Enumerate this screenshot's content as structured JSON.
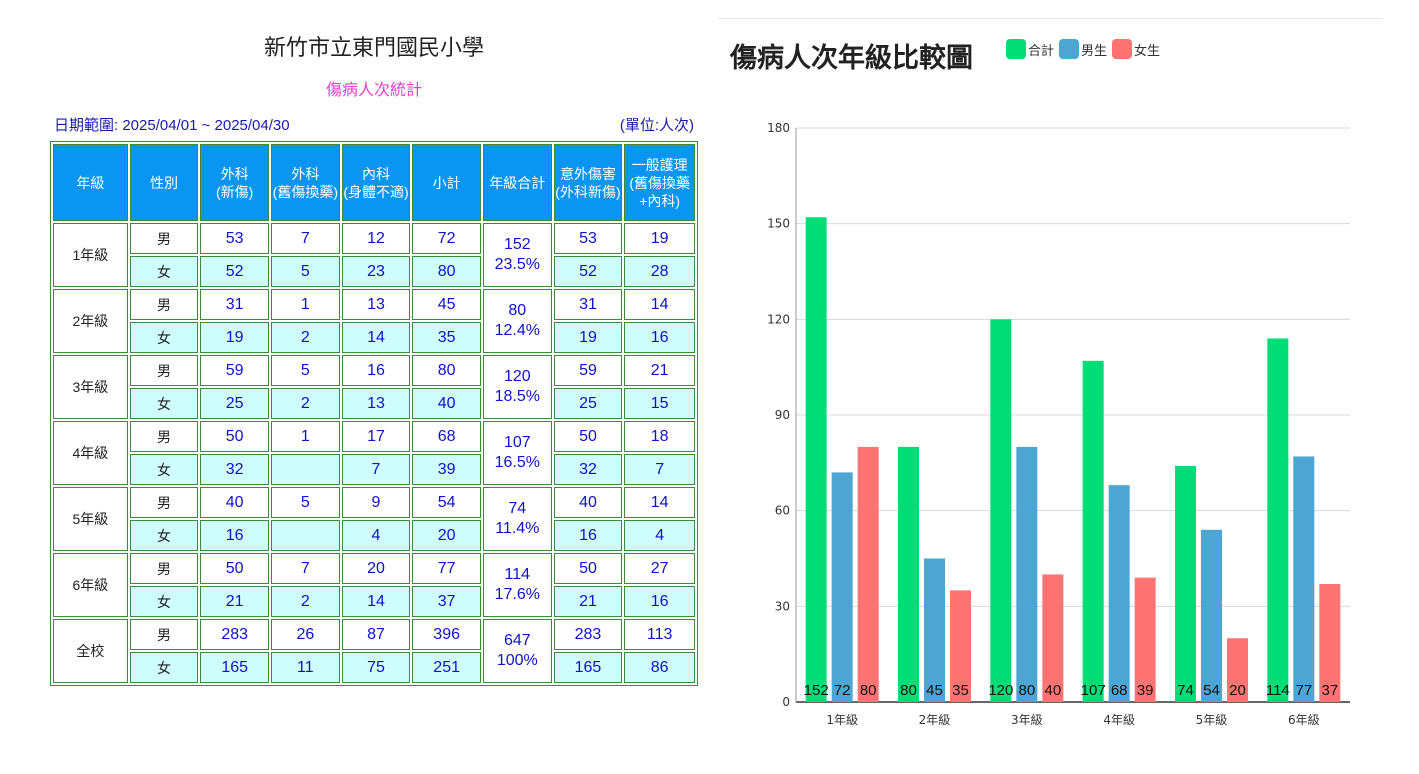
{
  "table": {
    "school": "新竹市立東門國民小學",
    "subtitle": "傷病人次統計",
    "date_range": "日期範圍: 2025/04/01 ~ 2025/04/30",
    "unit": "(單位:人次)",
    "headers": [
      "年級",
      "性別",
      "外科\n(新傷)",
      "外科\n(舊傷換藥)",
      "內科\n(身體不適)",
      "小計",
      "年級合計",
      "意外傷害\n(外科新傷)",
      "一般護理\n(舊傷換藥\n+內科)"
    ],
    "groups": [
      {
        "grade": "1年級",
        "total": "152",
        "pct": "23.5%",
        "rows": [
          {
            "sex": "男",
            "cells": [
              "53",
              "7",
              "12",
              "72",
              "53",
              "19"
            ]
          },
          {
            "sex": "女",
            "cells": [
              "52",
              "5",
              "23",
              "80",
              "52",
              "28"
            ]
          }
        ]
      },
      {
        "grade": "2年級",
        "total": "80",
        "pct": "12.4%",
        "rows": [
          {
            "sex": "男",
            "cells": [
              "31",
              "1",
              "13",
              "45",
              "31",
              "14"
            ]
          },
          {
            "sex": "女",
            "cells": [
              "19",
              "2",
              "14",
              "35",
              "19",
              "16"
            ]
          }
        ]
      },
      {
        "grade": "3年級",
        "total": "120",
        "pct": "18.5%",
        "rows": [
          {
            "sex": "男",
            "cells": [
              "59",
              "5",
              "16",
              "80",
              "59",
              "21"
            ]
          },
          {
            "sex": "女",
            "cells": [
              "25",
              "2",
              "13",
              "40",
              "25",
              "15"
            ]
          }
        ]
      },
      {
        "grade": "4年級",
        "total": "107",
        "pct": "16.5%",
        "rows": [
          {
            "sex": "男",
            "cells": [
              "50",
              "1",
              "17",
              "68",
              "50",
              "18"
            ]
          },
          {
            "sex": "女",
            "cells": [
              "32",
              "",
              "7",
              "39",
              "32",
              "7"
            ]
          }
        ]
      },
      {
        "grade": "5年級",
        "total": "74",
        "pct": "11.4%",
        "rows": [
          {
            "sex": "男",
            "cells": [
              "40",
              "5",
              "9",
              "54",
              "40",
              "14"
            ]
          },
          {
            "sex": "女",
            "cells": [
              "16",
              "",
              "4",
              "20",
              "16",
              "4"
            ]
          }
        ]
      },
      {
        "grade": "6年級",
        "total": "114",
        "pct": "17.6%",
        "rows": [
          {
            "sex": "男",
            "cells": [
              "50",
              "7",
              "20",
              "77",
              "50",
              "27"
            ]
          },
          {
            "sex": "女",
            "cells": [
              "21",
              "2",
              "14",
              "37",
              "21",
              "16"
            ]
          }
        ]
      },
      {
        "grade": "全校",
        "total": "647",
        "pct": "100%",
        "rows": [
          {
            "sex": "男",
            "cells": [
              "283",
              "26",
              "87",
              "396",
              "283",
              "113"
            ]
          },
          {
            "sex": "女",
            "cells": [
              "165",
              "11",
              "75",
              "251",
              "165",
              "86"
            ]
          }
        ]
      }
    ]
  },
  "chart_data": {
    "type": "bar",
    "title": "傷病人次年級比較圖",
    "categories": [
      "1年級",
      "2年級",
      "3年級",
      "4年級",
      "5年級",
      "6年級"
    ],
    "series": [
      {
        "name": "合計",
        "color": "#00dd77",
        "values": [
          152,
          80,
          120,
          107,
          74,
          114
        ]
      },
      {
        "name": "男生",
        "color": "#4da6d1",
        "values": [
          72,
          45,
          80,
          68,
          54,
          77
        ]
      },
      {
        "name": "女生",
        "color": "#ff7373",
        "values": [
          80,
          35,
          40,
          39,
          20,
          37
        ]
      }
    ],
    "ylim": [
      0,
      180
    ],
    "yticks": [
      0,
      30,
      60,
      90,
      120,
      150,
      180
    ],
    "grid": true,
    "legend": "top"
  }
}
